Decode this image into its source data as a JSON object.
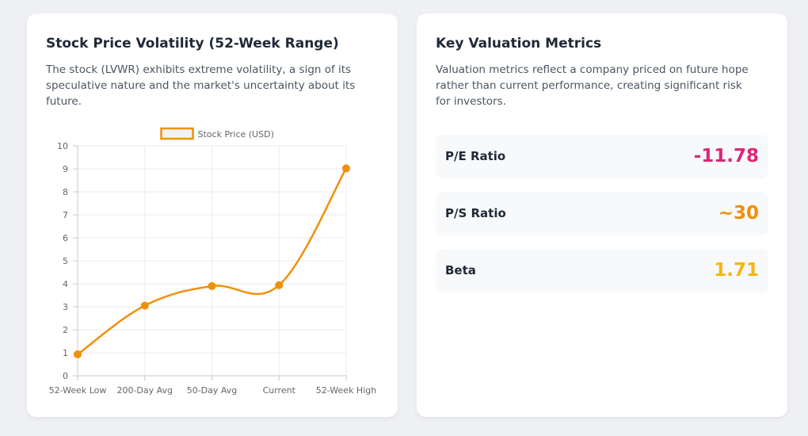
{
  "volatility_card": {
    "title": "Stock Price Volatility (52-Week Range)",
    "description": "The stock (LVWR) exhibits extreme volatility, a sign of its speculative nature and the market's uncertainty about its future."
  },
  "chart_data": {
    "type": "line",
    "categories": [
      "52-Week Low",
      "200-Day Avg",
      "50-Day Avg",
      "Current",
      "52-Week High"
    ],
    "series": [
      {
        "name": "Stock Price (USD)",
        "values": [
          0.93,
          3.05,
          3.9,
          3.94,
          9.02
        ],
        "color": "#f0900a"
      }
    ],
    "ylim": [
      0,
      10
    ],
    "yticks": [
      "0",
      "1",
      "2",
      "3",
      "4",
      "5",
      "6",
      "7",
      "8",
      "9",
      "10"
    ],
    "grid": true,
    "legend": "top-center"
  },
  "metrics_card": {
    "title": "Key Valuation Metrics",
    "description": "Valuation metrics reflect a company priced on future hope rather than current performance, creating significant risk for investors.",
    "metrics": [
      {
        "label": "P/E Ratio",
        "value": "-11.78",
        "color": "#db2777"
      },
      {
        "label": "P/S Ratio",
        "value": "~30",
        "color": "#f0900a"
      },
      {
        "label": "Beta",
        "value": "1.71",
        "color": "#f5b511"
      }
    ]
  }
}
